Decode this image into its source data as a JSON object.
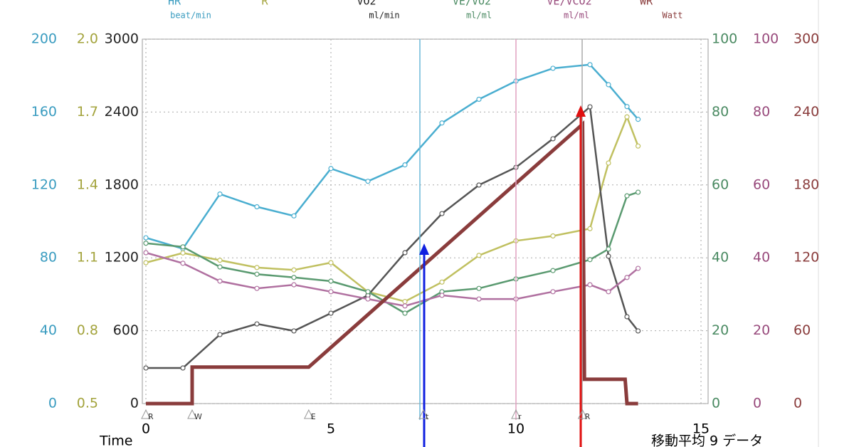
{
  "chart_data": {
    "type": "line",
    "x_label": "Time",
    "footer": "移動平均 9 データ",
    "xlim": [
      0,
      15
    ],
    "xticks": [
      0,
      5,
      10,
      15
    ],
    "grid": true,
    "axes": [
      {
        "id": "hr",
        "side": "left",
        "color": "#3a9cc0",
        "lim": [
          0,
          200
        ],
        "ticks": [
          0,
          40,
          80,
          120,
          160,
          200
        ]
      },
      {
        "id": "r",
        "side": "left",
        "color": "#a3a33c",
        "lim": [
          0.5,
          2.0
        ],
        "ticks": [
          0.5,
          0.8,
          1.1,
          1.4,
          1.7,
          {
            "value": 2,
            "label": "2.0"
          }
        ]
      },
      {
        "id": "vo2",
        "side": "left",
        "color": "#222222",
        "lim": [
          0,
          3000
        ],
        "ticks": [
          0,
          600,
          1200,
          1800,
          2400,
          3000
        ]
      },
      {
        "id": "vevo2",
        "side": "right",
        "color": "#4a8a62",
        "lim": [
          0,
          100
        ],
        "ticks": [
          0,
          20,
          40,
          60,
          80,
          100
        ]
      },
      {
        "id": "vevco2",
        "side": "right",
        "color": "#984a7c",
        "lim": [
          0,
          100
        ],
        "ticks": [
          0,
          20,
          40,
          60,
          80,
          100
        ]
      },
      {
        "id": "wr",
        "side": "right",
        "color": "#8a3c3c",
        "lim": [
          0,
          300
        ],
        "ticks": [
          0,
          60,
          120,
          180,
          240,
          300
        ]
      }
    ],
    "x": [
      0,
      1,
      2,
      3,
      4,
      5,
      6,
      7,
      8,
      9,
      10,
      11,
      12,
      12.5,
      13,
      13.3
    ],
    "series": [
      {
        "name": "HR",
        "unit": "beat/min",
        "axis": "hr",
        "color": "#4aaed0",
        "values": [
          91,
          85,
          115,
          108,
          103,
          129,
          122,
          131,
          154,
          167,
          177,
          184,
          186,
          175,
          163,
          156
        ]
      },
      {
        "name": "R",
        "axis": "r",
        "color": "#c0c060",
        "values": [
          1.08,
          1.12,
          1.09,
          1.06,
          1.05,
          1.08,
          0.96,
          0.92,
          1.0,
          1.11,
          1.17,
          1.19,
          1.22,
          1.49,
          1.68,
          1.56
        ]
      },
      {
        "name": "VO2",
        "unit": "ml/min",
        "axis": "vo2",
        "color": "#555555",
        "values": [
          293,
          293,
          568,
          656,
          598,
          744,
          891,
          1242,
          1564,
          1799,
          1945,
          2180,
          2443,
          1213,
          715,
          598
        ]
      },
      {
        "name": "VE/VO2",
        "unit": "ml/ml",
        "axis": "vevo2",
        "color": "#5a9a70",
        "values": [
          44,
          43,
          37.5,
          35.5,
          34.6,
          33.6,
          30.7,
          24.8,
          30.7,
          31.6,
          34.2,
          36.5,
          39.5,
          42.4,
          57,
          58
        ]
      },
      {
        "name": "VE/VCO2",
        "unit": "ml/ml",
        "axis": "vevco2",
        "color": "#b070a0",
        "values": [
          41.4,
          38.5,
          33.6,
          31.6,
          32.6,
          30.7,
          28.7,
          26.8,
          29.7,
          28.7,
          28.7,
          30.7,
          32.6,
          30.7,
          34.6,
          37.1
        ]
      },
      {
        "name": "WR",
        "unit": "Watt",
        "axis": "wr",
        "color": "#8a3c3c",
        "x": [
          0,
          1.25,
          1.25,
          4.4,
          11.8,
          11.85,
          12.95,
          13.0,
          13.3
        ],
        "values": [
          0,
          0,
          30,
          30,
          230,
          20,
          20,
          0,
          0
        ]
      }
    ],
    "annotations": [
      {
        "text": "R",
        "x": 0
      },
      {
        "text": "W",
        "x": 1.25
      },
      {
        "text": "E",
        "x": 4.4
      },
      {
        "text": "t",
        "x": 7.5
      },
      {
        "text": "r",
        "x": 10
      },
      {
        "text": "R",
        "x": 11.8
      }
    ]
  }
}
